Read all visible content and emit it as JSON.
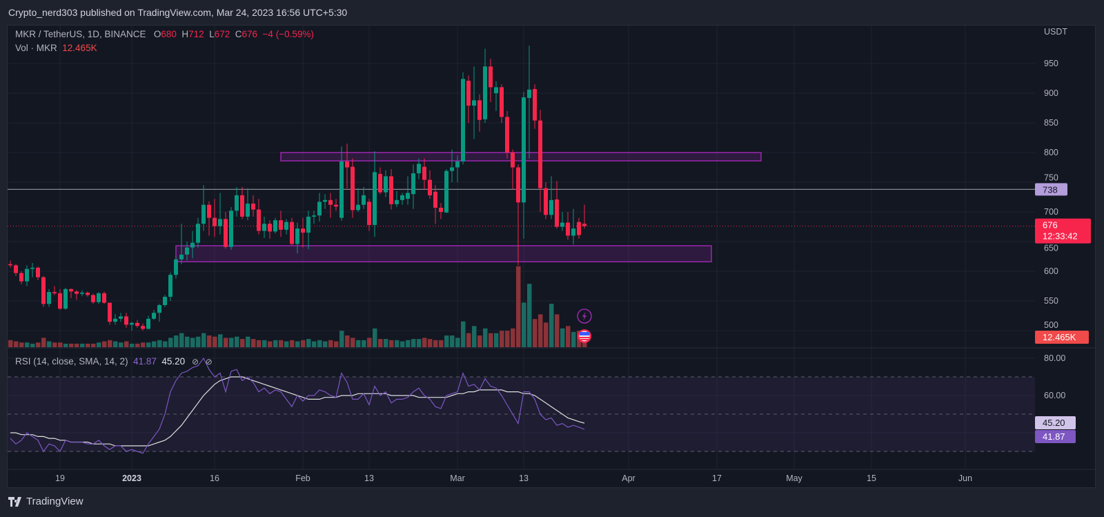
{
  "publish_line": "Crypto_nerd303 published on TradingView.com, Mar 24, 2023 16:56 UTC+5:30",
  "legend": {
    "symbol": "MKR / TetherUS, 1D, BINANCE",
    "o_label": "O",
    "o": "680",
    "h_label": "H",
    "h": "712",
    "l_label": "L",
    "l": "672",
    "c_label": "C",
    "c": "676",
    "change": "−4 (−0.59%)",
    "vol_label": "Vol · MKR",
    "vol": "12.465K"
  },
  "rsi_legend": {
    "label": "RSI (14, close, SMA, 14, 2)",
    "rsi": "41.87",
    "sma": "45.20",
    "icon1": "eye-off-icon",
    "icon2": "eye-off-icon"
  },
  "footer": {
    "logo_text": "TradingView"
  },
  "colors": {
    "up": "#089981",
    "down": "#f7254c",
    "vol_up": "#1a6b62",
    "vol_down": "#8a3338",
    "zone": "#9c27b0",
    "rsi": "#7e57c2",
    "rsi_sma": "#e0e0e0",
    "line_738": "#9598a1"
  },
  "chart_data": [
    {
      "type": "candlestick",
      "title": "MKR / TetherUS, 1D, BINANCE",
      "currency_label": "USDT",
      "start_date": "2022-12-10",
      "y_ticks": [
        950,
        900,
        850,
        800,
        750,
        700,
        650,
        600,
        550,
        500
      ],
      "x_ticks": [
        {
          "date": "2022-12-19",
          "label": "19"
        },
        {
          "date": "2023-01-01",
          "label": "2023",
          "bold": true
        },
        {
          "date": "2023-01-16",
          "label": "16"
        },
        {
          "date": "2023-02-01",
          "label": "Feb"
        },
        {
          "date": "2023-02-13",
          "label": "13"
        },
        {
          "date": "2023-03-01",
          "label": "Mar"
        },
        {
          "date": "2023-03-13",
          "label": "13"
        },
        {
          "date": "2023-04-01",
          "label": "Apr"
        },
        {
          "date": "2023-04-17",
          "label": "17"
        },
        {
          "date": "2023-05-01",
          "label": "May"
        },
        {
          "date": "2023-05-15",
          "label": "15"
        },
        {
          "date": "2023-06-01",
          "label": "Jun"
        }
      ],
      "grid": true,
      "ohlc": [
        [
          612,
          618,
          606,
          610
        ],
        [
          610,
          612,
          592,
          597
        ],
        [
          597,
          600,
          578,
          583
        ],
        [
          583,
          610,
          575,
          604
        ],
        [
          604,
          614,
          590,
          606
        ],
        [
          606,
          608,
          585,
          590
        ],
        [
          590,
          592,
          540,
          545
        ],
        [
          545,
          570,
          540,
          565
        ],
        [
          565,
          575,
          560,
          563
        ],
        [
          563,
          570,
          535,
          537
        ],
        [
          537,
          572,
          535,
          570
        ],
        [
          570,
          571,
          555,
          566
        ],
        [
          566,
          568,
          552,
          562
        ],
        [
          562,
          568,
          558,
          564
        ],
        [
          564,
          566,
          557,
          560
        ],
        [
          560,
          562,
          545,
          548
        ],
        [
          548,
          565,
          545,
          563
        ],
        [
          563,
          566,
          545,
          547
        ],
        [
          547,
          547,
          510,
          515
        ],
        [
          515,
          528,
          510,
          520
        ],
        [
          520,
          530,
          515,
          524
        ],
        [
          524,
          530,
          505,
          510
        ],
        [
          510,
          515,
          500,
          513
        ],
        [
          513,
          518,
          505,
          508
        ],
        [
          508,
          512,
          500,
          503
        ],
        [
          503,
          525,
          502,
          520
        ],
        [
          520,
          535,
          518,
          530
        ],
        [
          530,
          545,
          515,
          543
        ],
        [
          543,
          560,
          540,
          557
        ],
        [
          557,
          598,
          550,
          594
        ],
        [
          594,
          625,
          588,
          620
        ],
        [
          620,
          680,
          612,
          628
        ],
        [
          628,
          650,
          618,
          640
        ],
        [
          640,
          668,
          622,
          648
        ],
        [
          648,
          690,
          640,
          680
        ],
        [
          680,
          745,
          668,
          712
        ],
        [
          712,
          718,
          660,
          690
        ],
        [
          690,
          722,
          658,
          676
        ],
        [
          676,
          732,
          662,
          688
        ],
        [
          688,
          700,
          638,
          641
        ],
        [
          641,
          708,
          636,
          702
        ],
        [
          702,
          742,
          692,
          728
        ],
        [
          728,
          742,
          688,
          692
        ],
        [
          692,
          740,
          686,
          714
        ],
        [
          714,
          728,
          692,
          704
        ],
        [
          704,
          722,
          662,
          668
        ],
        [
          668,
          692,
          656,
          680
        ],
        [
          680,
          686,
          655,
          667
        ],
        [
          667,
          690,
          664,
          686
        ],
        [
          686,
          702,
          658,
          670
        ],
        [
          670,
          688,
          662,
          683
        ],
        [
          683,
          690,
          644,
          646
        ],
        [
          646,
          682,
          630,
          672
        ],
        [
          672,
          690,
          640,
          665
        ],
        [
          665,
          702,
          637,
          692
        ],
        [
          692,
          702,
          680,
          694
        ],
        [
          694,
          732,
          684,
          717
        ],
        [
          717,
          730,
          705,
          720
        ],
        [
          720,
          732,
          690,
          712
        ],
        [
          712,
          722,
          702,
          709
        ],
        [
          690,
          810,
          685,
          785
        ],
        [
          785,
          815,
          740,
          775
        ],
        [
          776,
          790,
          690,
          703
        ],
        [
          703,
          740,
          700,
          712
        ],
        [
          712,
          742,
          705,
          728
        ],
        [
          717,
          722,
          668,
          678
        ],
        [
          678,
          802,
          658,
          767
        ],
        [
          764,
          775,
          730,
          733
        ],
        [
          733,
          770,
          725,
          760
        ],
        [
          760,
          772,
          704,
          713
        ],
        [
          713,
          735,
          708,
          720
        ],
        [
          720,
          732,
          712,
          728
        ],
        [
          722,
          760,
          712,
          732
        ],
        [
          730,
          780,
          705,
          765
        ],
        [
          765,
          790,
          755,
          781
        ],
        [
          776,
          790,
          738,
          754
        ],
        [
          754,
          770,
          722,
          728
        ],
        [
          734,
          745,
          680,
          707
        ],
        [
          707,
          715,
          688,
          700
        ],
        [
          699,
          772,
          698,
          769
        ],
        [
          769,
          805,
          750,
          775
        ],
        [
          775,
          795,
          750,
          785
        ],
        [
          785,
          935,
          780,
          924
        ],
        [
          921,
          930,
          850,
          879
        ],
        [
          879,
          945,
          823,
          888
        ],
        [
          888,
          898,
          835,
          855
        ],
        [
          856,
          975,
          850,
          945
        ],
        [
          945,
          958,
          885,
          910
        ],
        [
          900,
          920,
          870,
          910
        ],
        [
          910,
          915,
          850,
          860
        ],
        [
          860,
          870,
          790,
          800
        ],
        [
          800,
          805,
          738,
          775
        ],
        [
          775,
          780,
          610,
          716
        ],
        [
          716,
          902,
          655,
          893
        ],
        [
          892,
          980,
          790,
          906
        ],
        [
          907,
          915,
          840,
          854
        ],
        [
          854,
          872,
          700,
          740
        ],
        [
          740,
          750,
          688,
          695
        ],
        [
          695,
          760,
          688,
          720
        ],
        [
          721,
          752,
          672,
          675
        ],
        [
          675,
          700,
          668,
          682
        ],
        [
          682,
          700,
          653,
          660
        ],
        [
          660,
          705,
          645,
          672
        ],
        [
          683,
          690,
          655,
          661
        ],
        [
          680,
          712,
          672,
          676
        ]
      ],
      "volume_k": [
        6,
        5,
        4,
        4,
        3,
        4,
        8,
        5,
        4,
        4,
        3,
        3,
        3,
        3,
        3,
        3,
        4,
        5,
        6,
        5,
        4,
        5,
        3,
        3,
        4,
        4,
        5,
        6,
        5,
        8,
        10,
        12,
        9,
        8,
        9,
        12,
        10,
        9,
        11,
        8,
        8,
        9,
        7,
        9,
        7,
        6,
        6,
        5,
        6,
        6,
        5,
        6,
        5,
        6,
        7,
        5,
        6,
        5,
        6,
        5,
        14,
        10,
        8,
        6,
        6,
        8,
        16,
        7,
        7,
        6,
        6,
        5,
        6,
        7,
        7,
        8,
        7,
        6,
        6,
        10,
        10,
        8,
        22,
        12,
        18,
        10,
        16,
        12,
        12,
        14,
        14,
        16,
        69,
        38,
        54,
        24,
        28,
        21,
        37,
        28,
        16,
        18,
        13,
        14,
        12.465
      ],
      "horizontal_line": {
        "price": 738,
        "label": "738"
      },
      "last_price": {
        "price": 676,
        "label": "676",
        "countdown": "12:33:42"
      },
      "volume_label": "12.465K",
      "zones": [
        {
          "from_date": "2023-01-28",
          "to_date": "2023-04-25",
          "low": 786,
          "high": 800
        },
        {
          "from_date": "2023-01-09",
          "to_date": "2023-04-16",
          "low": 616,
          "high": 643
        }
      ],
      "markers": [
        {
          "date": "2023-03-24",
          "icon": "lightning-icon"
        },
        {
          "date": "2023-03-24",
          "icon": "us-flag-icon"
        }
      ]
    },
    {
      "type": "line",
      "title": "RSI (14, close, SMA, 14, 2)",
      "y_ticks": [
        "80.00",
        "60.00"
      ],
      "bands": [
        70,
        50,
        30
      ],
      "series": [
        {
          "name": "RSI",
          "values": [
            37,
            34,
            36,
            40,
            38,
            36,
            30,
            34,
            33,
            30,
            36,
            35,
            35,
            35,
            34,
            34,
            36,
            33,
            31,
            33,
            33,
            30,
            31,
            30,
            29,
            34,
            38,
            42,
            50,
            62,
            68,
            72,
            73,
            75,
            76,
            80,
            74,
            70,
            72,
            62,
            73,
            74,
            68,
            70,
            67,
            62,
            64,
            61,
            63,
            62,
            58,
            54,
            60,
            57,
            60,
            60,
            63,
            62,
            60,
            59,
            72,
            67,
            58,
            58,
            61,
            55,
            65,
            60,
            62,
            56,
            58,
            58,
            59,
            62,
            64,
            60,
            58,
            54,
            53,
            60,
            61,
            62,
            72,
            65,
            66,
            63,
            69,
            65,
            64,
            60,
            55,
            50,
            45,
            62,
            62,
            58,
            50,
            47,
            48,
            44,
            45,
            43,
            44,
            43,
            41.87
          ],
          "label": "41.87"
        },
        {
          "name": "SMA",
          "values": [
            40,
            40,
            39,
            39,
            39,
            38,
            38,
            37,
            37,
            36,
            36,
            35,
            35,
            35,
            35,
            34,
            34,
            34,
            34,
            33,
            33,
            33,
            33,
            33,
            33,
            33,
            34,
            35,
            36,
            38,
            41,
            44,
            48,
            52,
            56,
            60,
            63,
            66,
            68,
            69,
            70,
            70,
            70,
            69,
            68,
            67,
            66,
            65,
            64,
            63,
            62,
            61,
            60,
            59,
            58,
            58,
            58,
            59,
            59,
            59,
            60,
            60,
            60,
            61,
            61,
            61,
            61,
            61,
            61,
            60,
            60,
            60,
            60,
            60,
            59,
            59,
            59,
            59,
            59,
            59,
            60,
            61,
            61,
            62,
            62,
            63,
            63,
            63,
            63,
            63,
            62,
            62,
            62,
            61,
            61,
            60,
            58,
            56,
            54,
            52,
            50,
            48,
            47,
            46,
            45.2
          ],
          "label": "45.20"
        }
      ]
    }
  ]
}
